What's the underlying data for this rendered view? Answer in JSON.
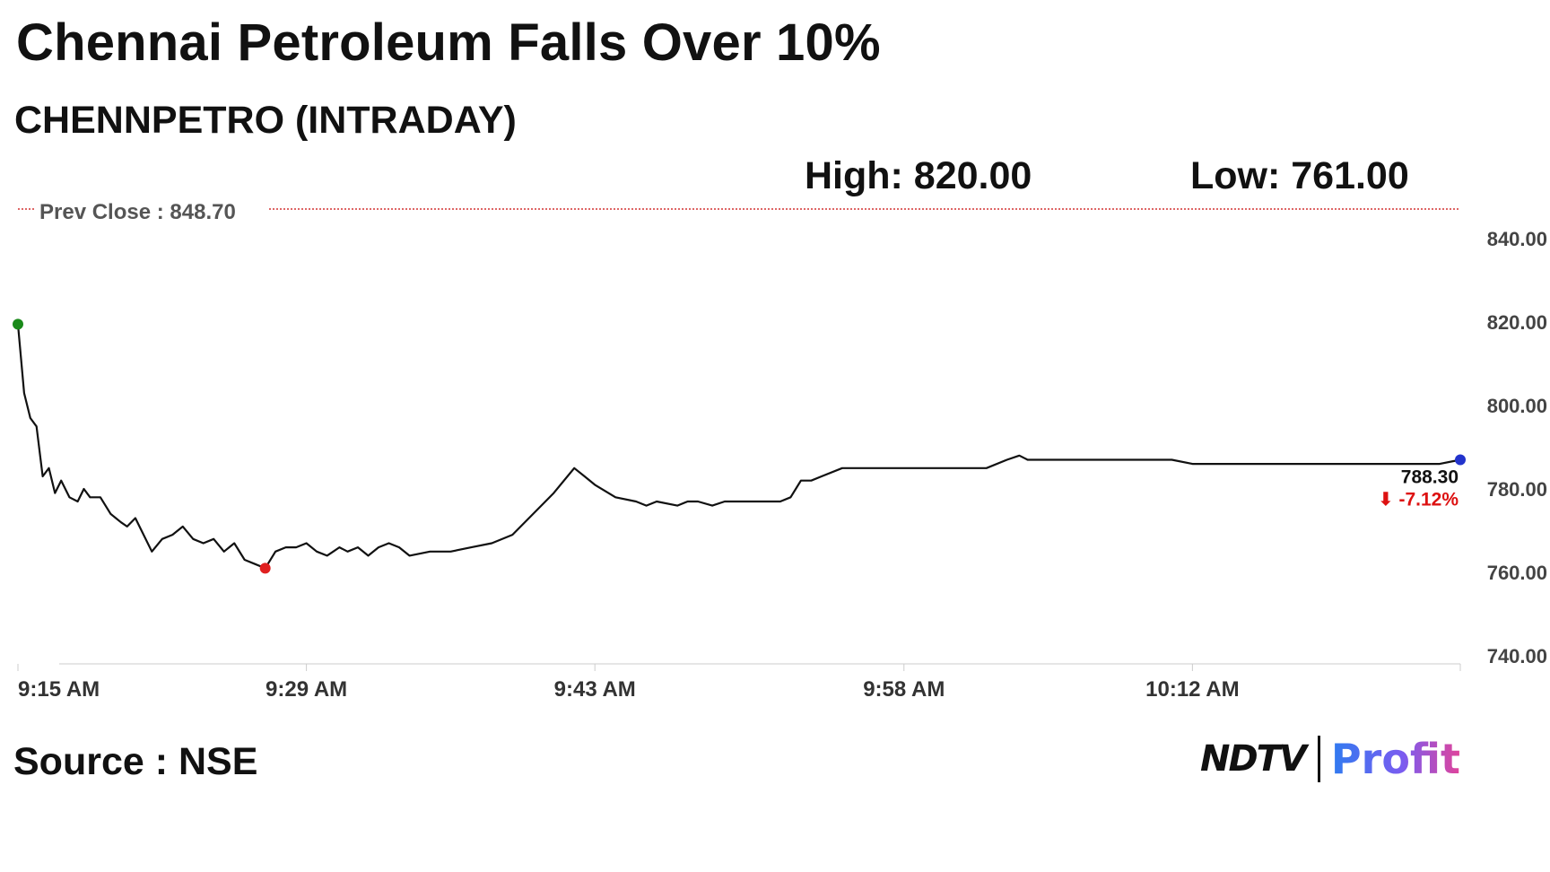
{
  "headline": "Chennai Petroleum Falls Over 10%",
  "subtitle": "CHENNPETRO (INTRADAY)",
  "high_text": "High: 820.00",
  "low_text": "Low: 761.00",
  "source": "Source : NSE",
  "logo": {
    "ndtv": "NDTV",
    "profit": "Profit"
  },
  "colors": {
    "line": "#111111",
    "prev_close_line": "#d33333",
    "start_marker": "#1a8a1a",
    "low_marker": "#e02020",
    "end_marker": "#2233cc",
    "change_negative": "#dd1111"
  },
  "chart_data": {
    "type": "line",
    "prev_close": {
      "label": "Prev Close : 848.70",
      "value": 848.7
    },
    "y_ticks": [
      "840.00",
      "820.00",
      "800.00",
      "780.00",
      "760.00",
      "740.00"
    ],
    "ylim": [
      740,
      850
    ],
    "x_ticks": [
      "9:15 AM",
      "9:29 AM",
      "9:43 AM",
      "9:58 AM",
      "10:12 AM"
    ],
    "x_tick_minutes": [
      0,
      14,
      28,
      43,
      57
    ],
    "xlim": [
      0,
      70
    ],
    "grid": false,
    "last_value_label": "788.30",
    "change_label": "-7.12%",
    "change_arrow": "⬇",
    "series": [
      {
        "x": [
          0,
          0.3,
          0.6,
          0.9,
          1.2,
          1.5,
          1.8,
          2.1,
          2.5,
          2.9,
          3.2,
          3.5,
          4.0,
          4.5,
          5.0,
          5.3,
          5.7,
          6.0,
          6.5,
          7.0,
          7.5,
          8.0,
          8.5,
          9.0,
          9.5,
          10.0,
          10.5,
          11.0,
          11.5,
          12.0,
          12.5,
          13.0,
          13.5,
          14.0,
          14.5,
          15.0,
          15.3,
          15.6,
          16.0,
          16.5,
          17.0,
          17.5,
          18.0,
          18.5,
          19.0,
          20.0,
          21.0,
          22.0,
          23.0,
          24.0,
          25.0,
          26.0,
          27.0,
          27.5,
          28.0,
          29.0,
          30.0,
          30.5,
          31.0,
          32.0,
          32.5,
          33.0,
          33.7,
          34.3,
          35.0,
          35.5,
          36.0,
          37.0,
          37.5,
          38.0,
          38.5,
          39.0,
          40.0,
          41.0,
          42.0,
          43.0,
          44.0,
          45.0,
          46.0,
          47.0,
          48.0,
          48.6,
          49.0,
          49.5,
          50.0,
          51.0,
          52.0,
          53.0,
          54.0,
          55.0,
          56.0,
          57.0,
          58.0,
          59.0,
          60.0,
          61.0,
          62.0,
          63.0,
          64.0,
          65.0,
          66.0,
          67.0,
          68.0,
          69.0,
          70.0
        ],
        "y": [
          819.5,
          803,
          797,
          795,
          783,
          785,
          779,
          782,
          778,
          777,
          780,
          778,
          778,
          774,
          772,
          771,
          773,
          770,
          765,
          768,
          769,
          771,
          768,
          767,
          768,
          765,
          767,
          763,
          762,
          761,
          765,
          766,
          766,
          767,
          765,
          764,
          765,
          766,
          765,
          766,
          764,
          766,
          767,
          766,
          764,
          765,
          765,
          766,
          767,
          769,
          774,
          779,
          785,
          783,
          781,
          778,
          777,
          776,
          777,
          776,
          777,
          777,
          776,
          777,
          777,
          777,
          777,
          777,
          778,
          782,
          782,
          783,
          785,
          785,
          785,
          785,
          785,
          785,
          785,
          785,
          787,
          788,
          787,
          787,
          787,
          787,
          787,
          787,
          787,
          787,
          787,
          786,
          786,
          786,
          786,
          786,
          786,
          786,
          786,
          786,
          786,
          786,
          786,
          786,
          787
        ]
      }
    ]
  }
}
